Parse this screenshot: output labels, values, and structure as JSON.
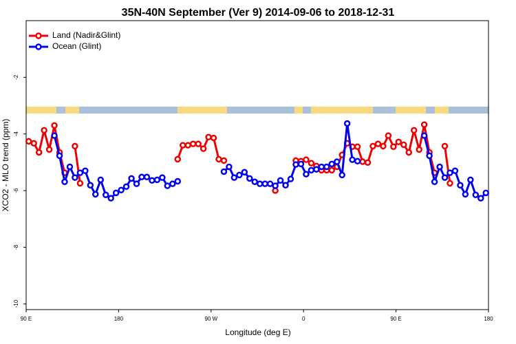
{
  "chart_data": {
    "type": "line",
    "title": "35N-40N September (Ver 9)   2014-09-06 to 2018-12-31",
    "x_label": "Longitude (deg E)",
    "y_label": "XCO2 - MLO trend (ppm)",
    "xlim": [
      90,
      540
    ],
    "ylim": [
      -10.2,
      0
    ],
    "xticks": [
      {
        "value": 90,
        "label": "90 E"
      },
      {
        "value": 180,
        "label": "180"
      },
      {
        "value": 270,
        "label": "90 W"
      },
      {
        "value": 360,
        "label": "0"
      },
      {
        "value": 450,
        "label": "90 E"
      },
      {
        "value": 540,
        "label": "180"
      }
    ],
    "yticks": [
      -10,
      -8,
      -6,
      -4,
      -2
    ],
    "legend": "top-left",
    "series": [
      {
        "name": "Land (Nadir&Glint)",
        "color": "#ee0000",
        "x": [
          92.5,
          97.5,
          102.5,
          107.5,
          112.5,
          117.5,
          122.5,
          127.5,
          132.5,
          137.5,
          142.5,
          147.5,
          237.5,
          242.5,
          247.5,
          252.5,
          257.5,
          262.5,
          267.5,
          272.5,
          277.5,
          282.5,
          287.5,
          332.5,
          337.5,
          352.5,
          357.5,
          362.5,
          367.5,
          372.5,
          377.5,
          382.5,
          387.5,
          392.5,
          397.5,
          402.5,
          407.5,
          412.5,
          417.5,
          422.5,
          427.5,
          432.5,
          437.5,
          442.5,
          447.5,
          452.5,
          457.5,
          462.5,
          467.5,
          472.5,
          477.5,
          482.5,
          487.5,
          492.5,
          497.5,
          502.5
        ],
        "values": [
          -4.26,
          -4.33,
          -4.65,
          -3.87,
          -4.55,
          -3.7,
          -4.65,
          -5.37,
          null,
          -4.43,
          -5.74,
          null,
          -4.89,
          -4.4,
          -4.4,
          -4.35,
          -4.35,
          -4.52,
          -4.11,
          -4.14,
          -4.89,
          -4.94,
          null,
          -6.0,
          null,
          -4.94,
          -4.96,
          -4.91,
          -5.03,
          -5.13,
          -5.28,
          -5.28,
          -5.28,
          -5.16,
          -4.74,
          -4.33,
          -4.45,
          -4.45,
          -4.98,
          -5.01,
          -4.43,
          -4.35,
          -4.43,
          -4.06,
          -4.45,
          -4.28,
          -4.38,
          -4.65,
          -3.87,
          -4.55,
          -3.67,
          -4.65,
          -5.37,
          null,
          -4.43,
          -5.74
        ]
      },
      {
        "name": "Ocean (Glint)",
        "color": "#0000ee",
        "x": [
          117.5,
          122.5,
          127.5,
          132.5,
          137.5,
          142.5,
          147.5,
          152.5,
          157.5,
          162.5,
          167.5,
          172.5,
          177.5,
          182.5,
          187.5,
          192.5,
          197.5,
          202.5,
          207.5,
          212.5,
          217.5,
          222.5,
          227.5,
          232.5,
          237.5,
          242.5,
          282.5,
          287.5,
          292.5,
          297.5,
          302.5,
          307.5,
          312.5,
          317.5,
          322.5,
          327.5,
          332.5,
          337.5,
          342.5,
          347.5,
          352.5,
          357.5,
          362.5,
          367.5,
          372.5,
          377.5,
          382.5,
          387.5,
          392.5,
          397.5,
          402.5,
          407.5,
          412.5,
          417.5,
          477.5,
          482.5,
          487.5,
          492.5,
          497.5,
          502.5,
          507.5,
          512.5,
          517.5,
          522.5,
          527.5,
          532.5,
          537.5
        ],
        "values": [
          -4.06,
          -4.77,
          -5.69,
          -5.16,
          -5.54,
          -5.37,
          -5.3,
          -5.81,
          -6.13,
          -5.62,
          -6.15,
          -6.27,
          -6.08,
          -5.98,
          -5.86,
          -5.57,
          -5.76,
          -5.52,
          -5.52,
          -5.64,
          -5.62,
          -5.54,
          -5.83,
          -5.76,
          -5.67,
          null,
          -5.33,
          -5.16,
          -5.54,
          -5.45,
          -5.35,
          -5.57,
          -5.69,
          -5.76,
          -5.76,
          -5.76,
          -5.83,
          -5.64,
          -5.81,
          -5.59,
          -5.08,
          -5.06,
          -5.42,
          -5.28,
          -5.25,
          -5.16,
          -5.16,
          -5.06,
          -4.98,
          -5.45,
          -3.63,
          -4.91,
          -4.96,
          null,
          -4.06,
          -4.77,
          -5.69,
          -5.16,
          -5.54,
          -5.37,
          -5.3,
          -5.81,
          -6.13,
          -5.62,
          -6.15,
          -6.27,
          -6.08
        ]
      }
    ]
  }
}
